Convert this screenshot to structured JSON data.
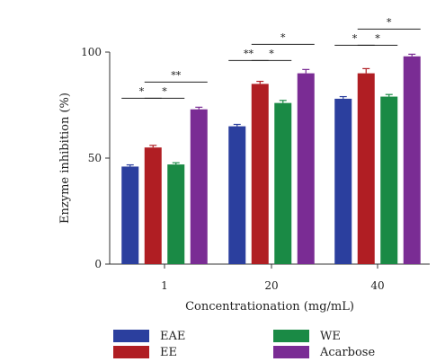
{
  "chart_data": {
    "type": "bar",
    "xlabel": "Concentrationation (mg/mL)",
    "ylabel": "Enzyme inhibition (%)",
    "ylim": [
      0,
      100
    ],
    "yticks": [
      "0",
      "50",
      "100"
    ],
    "categories": [
      "1",
      "20",
      "40"
    ],
    "series": [
      {
        "name": "EAE",
        "color": "#2b3f9e",
        "values": [
          46,
          65,
          78
        ],
        "errors": [
          0.8,
          0.9,
          1.0
        ]
      },
      {
        "name": "EE",
        "color": "#b01e23",
        "values": [
          55,
          85,
          90
        ],
        "errors": [
          1.0,
          1.2,
          2.2
        ]
      },
      {
        "name": "WE",
        "color": "#1a8a45",
        "values": [
          47,
          76,
          79
        ],
        "errors": [
          0.8,
          1.2,
          1.0
        ]
      },
      {
        "name": "Acarbose",
        "color": "#7a2c94",
        "values": [
          73,
          90,
          98
        ],
        "errors": [
          1.0,
          1.8,
          1.0
        ]
      }
    ],
    "significance": [
      {
        "category": 0,
        "from": 0,
        "to": 1,
        "label": "*"
      },
      {
        "category": 0,
        "from": 1,
        "to": 2,
        "label": "*"
      },
      {
        "category": 0,
        "from": 1,
        "to": 3,
        "label": "**"
      },
      {
        "category": 1,
        "from": 0,
        "to": 1,
        "label": "**"
      },
      {
        "category": 1,
        "from": 1,
        "to": 2,
        "label": "*"
      },
      {
        "category": 1,
        "from": 1,
        "to": 3,
        "label": "*"
      },
      {
        "category": 2,
        "from": 0,
        "to": 1,
        "label": "*"
      },
      {
        "category": 2,
        "from": 1,
        "to": 2,
        "label": "*"
      },
      {
        "category": 2,
        "from": 1,
        "to": 3,
        "label": "*"
      }
    ],
    "legend_position": "bottom",
    "grid": false
  }
}
